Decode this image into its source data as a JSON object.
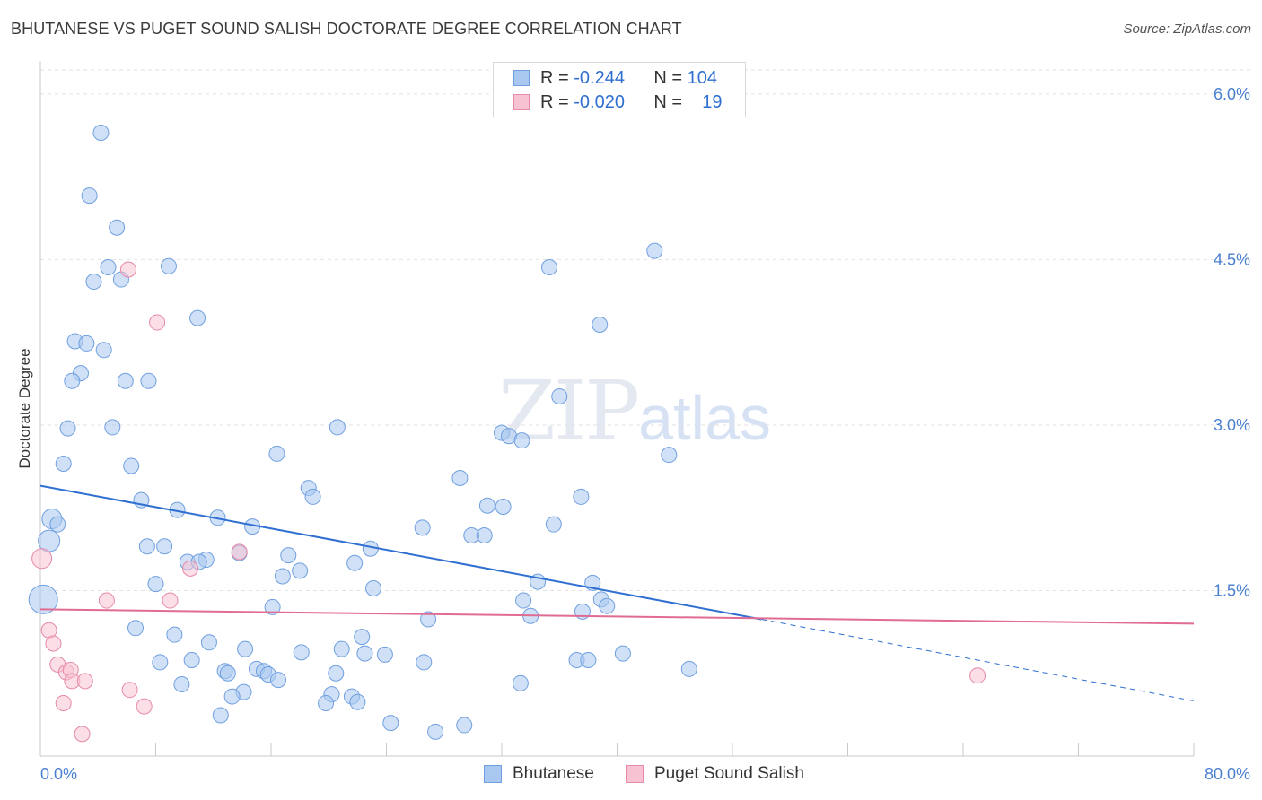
{
  "title": "BHUTANESE VS PUGET SOUND SALISH DOCTORATE DEGREE CORRELATION CHART",
  "source": "Source: ZipAtlas.com",
  "watermark": {
    "zip": "ZIP",
    "atlas": "atlas"
  },
  "legend": {
    "rows": [
      {
        "r_label": "R =",
        "r_value": "-0.244",
        "n_label": "N =",
        "n_value": "104",
        "color": "#a9c8f0",
        "border": "#6f9fe0"
      },
      {
        "r_label": "R =",
        "r_value": "-0.020",
        "n_label": "N =",
        "n_value": "19",
        "color": "#f7c2d2",
        "border": "#e68aa8"
      }
    ]
  },
  "bottom_legend": [
    {
      "label": "Bhutanese",
      "color": "#a9c8f0",
      "border": "#6f9fe0"
    },
    {
      "label": "Puget Sound Salish",
      "color": "#f7c2d2",
      "border": "#e68aa8"
    }
  ],
  "chart_data": {
    "type": "scatter",
    "xlabel": "",
    "ylabel": "Doctorate Degree",
    "xlim": [
      0,
      80
    ],
    "ylim": [
      0,
      6.3
    ],
    "x_tick_labels": [
      "0.0%",
      "80.0%"
    ],
    "y_ticks": [
      1.5,
      3.0,
      4.5,
      6.0
    ],
    "y_tick_labels": [
      "1.5%",
      "3.0%",
      "4.5%",
      "6.0%"
    ],
    "grid": true,
    "legend_position": "top-center",
    "series": [
      {
        "name": "Bhutanese",
        "color": "#a9c8f0",
        "stroke": "#6f9fe0",
        "trend": {
          "x": [
            0,
            50
          ],
          "y": [
            2.45,
            1.24
          ],
          "dashed_to": [
            80,
            0.5
          ],
          "color": "#2f6fd1"
        },
        "points": [
          [
            4.2,
            5.65
          ],
          [
            3.4,
            5.08
          ],
          [
            5.3,
            4.79
          ],
          [
            4.7,
            4.43
          ],
          [
            3.7,
            4.3
          ],
          [
            5.6,
            4.32
          ],
          [
            8.9,
            4.44
          ],
          [
            10.9,
            3.97
          ],
          [
            2.4,
            3.76
          ],
          [
            3.2,
            3.74
          ],
          [
            4.4,
            3.68
          ],
          [
            2.8,
            3.47
          ],
          [
            2.2,
            3.4
          ],
          [
            5.9,
            3.4
          ],
          [
            7.5,
            3.4
          ],
          [
            1.9,
            2.97
          ],
          [
            5.0,
            2.98
          ],
          [
            1.6,
            2.65
          ],
          [
            6.3,
            2.63
          ],
          [
            0.8,
            2.15
          ],
          [
            1.2,
            2.1
          ],
          [
            0.6,
            1.95
          ],
          [
            0.2,
            1.42
          ],
          [
            7.0,
            2.32
          ],
          [
            9.5,
            2.23
          ],
          [
            12.3,
            2.16
          ],
          [
            14.7,
            2.08
          ],
          [
            7.4,
            1.9
          ],
          [
            8.6,
            1.9
          ],
          [
            10.2,
            1.76
          ],
          [
            11.5,
            1.78
          ],
          [
            11.0,
            1.76
          ],
          [
            13.8,
            1.84
          ],
          [
            17.2,
            1.82
          ],
          [
            16.8,
            1.63
          ],
          [
            18.0,
            1.68
          ],
          [
            8.0,
            1.56
          ],
          [
            16.4,
            2.74
          ],
          [
            18.6,
            2.43
          ],
          [
            18.9,
            2.35
          ],
          [
            20.6,
            2.98
          ],
          [
            21.8,
            1.75
          ],
          [
            22.9,
            1.88
          ],
          [
            23.1,
            1.52
          ],
          [
            16.1,
            1.35
          ],
          [
            6.6,
            1.16
          ],
          [
            9.3,
            1.1
          ],
          [
            11.7,
            1.03
          ],
          [
            14.2,
            0.97
          ],
          [
            8.3,
            0.85
          ],
          [
            10.5,
            0.87
          ],
          [
            9.8,
            0.65
          ],
          [
            12.8,
            0.77
          ],
          [
            13.0,
            0.75
          ],
          [
            15.0,
            0.79
          ],
          [
            15.5,
            0.77
          ],
          [
            15.8,
            0.74
          ],
          [
            16.5,
            0.69
          ],
          [
            14.1,
            0.58
          ],
          [
            13.3,
            0.54
          ],
          [
            12.5,
            0.37
          ],
          [
            18.1,
            0.94
          ],
          [
            20.5,
            0.75
          ],
          [
            20.2,
            0.56
          ],
          [
            19.8,
            0.48
          ],
          [
            20.9,
            0.97
          ],
          [
            21.6,
            0.54
          ],
          [
            22.0,
            0.49
          ],
          [
            22.3,
            1.08
          ],
          [
            22.5,
            0.93
          ],
          [
            23.9,
            0.92
          ],
          [
            24.3,
            0.3
          ],
          [
            26.6,
            0.85
          ],
          [
            27.4,
            0.22
          ],
          [
            29.4,
            0.28
          ],
          [
            26.5,
            2.07
          ],
          [
            26.9,
            1.24
          ],
          [
            29.1,
            2.52
          ],
          [
            29.9,
            2.0
          ],
          [
            30.8,
            2.0
          ],
          [
            31.0,
            2.27
          ],
          [
            32.1,
            2.26
          ],
          [
            32.0,
            2.93
          ],
          [
            32.5,
            2.9
          ],
          [
            33.4,
            2.86
          ],
          [
            33.5,
            1.41
          ],
          [
            34.0,
            1.27
          ],
          [
            34.5,
            1.58
          ],
          [
            33.3,
            0.66
          ],
          [
            35.3,
            4.43
          ],
          [
            35.6,
            2.1
          ],
          [
            36.0,
            3.26
          ],
          [
            37.5,
            2.35
          ],
          [
            37.6,
            1.31
          ],
          [
            37.2,
            0.87
          ],
          [
            38.0,
            0.87
          ],
          [
            38.3,
            1.57
          ],
          [
            38.8,
            3.91
          ],
          [
            38.9,
            1.42
          ],
          [
            39.3,
            1.36
          ],
          [
            40.4,
            0.93
          ],
          [
            42.6,
            4.58
          ],
          [
            43.6,
            2.73
          ],
          [
            45.0,
            0.79
          ]
        ]
      },
      {
        "name": "Puget Sound Salish",
        "color": "#f7c2d2",
        "stroke": "#e68aa8",
        "trend": {
          "x": [
            0,
            80
          ],
          "y": [
            1.33,
            1.2
          ],
          "color": "#e06b93"
        },
        "points": [
          [
            6.1,
            4.41
          ],
          [
            8.1,
            3.93
          ],
          [
            13.8,
            1.85
          ],
          [
            10.4,
            1.7
          ],
          [
            0.1,
            1.79
          ],
          [
            4.6,
            1.41
          ],
          [
            9.0,
            1.41
          ],
          [
            0.6,
            1.14
          ],
          [
            0.9,
            1.02
          ],
          [
            1.2,
            0.83
          ],
          [
            1.8,
            0.76
          ],
          [
            2.1,
            0.78
          ],
          [
            2.2,
            0.68
          ],
          [
            3.1,
            0.68
          ],
          [
            6.2,
            0.6
          ],
          [
            1.6,
            0.48
          ],
          [
            7.2,
            0.45
          ],
          [
            2.9,
            0.2
          ],
          [
            65.0,
            0.73
          ]
        ]
      }
    ]
  }
}
